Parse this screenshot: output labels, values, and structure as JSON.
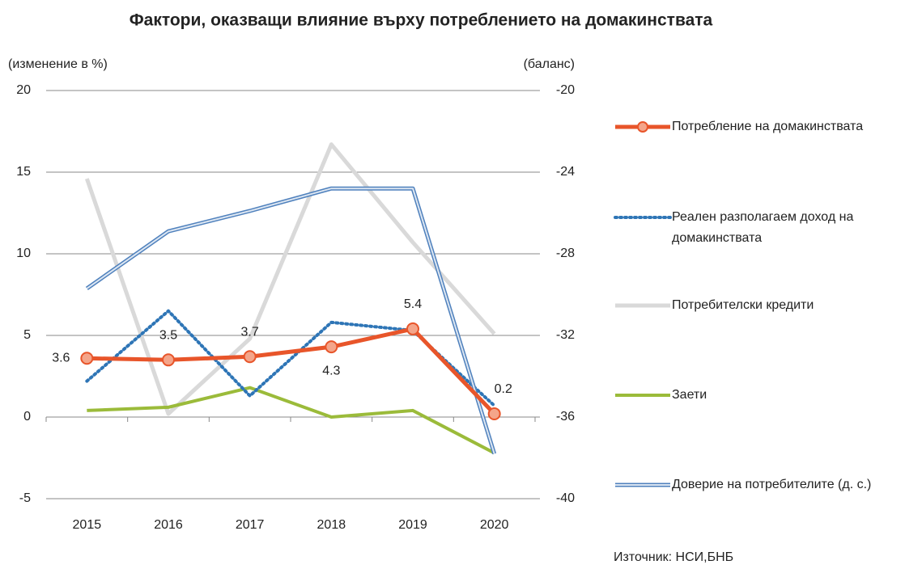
{
  "chart_data": {
    "type": "line",
    "title": "Фактори, оказващи влияние върху потреблението на домакинствата",
    "y_label": "(изменение в %)",
    "y2_label": "(баланс)",
    "source": "Източник: НСИ,БНБ",
    "categories": [
      "2015",
      "2016",
      "2017",
      "2018",
      "2019",
      "2020"
    ],
    "ylim": [
      -5,
      20
    ],
    "yticks": [
      -5,
      0,
      5,
      10,
      15,
      20
    ],
    "y2lim": [
      -40,
      -20
    ],
    "y2ticks": [
      -40,
      -36,
      -32,
      -28,
      -24,
      -20
    ],
    "grid": true,
    "series": [
      {
        "name": "Потребление на домакинствата",
        "color": "#e8552a",
        "values": [
          3.6,
          3.5,
          3.7,
          4.3,
          5.4,
          0.2
        ]
      },
      {
        "name": "Реален разполагаем доход на домакинствата",
        "color": "#2e75b6",
        "values": [
          2.2,
          6.5,
          1.3,
          5.8,
          5.3,
          0.7
        ]
      },
      {
        "name": "Потребителски кредити",
        "color": "#d9d9d9",
        "values": [
          14.6,
          0.2,
          4.8,
          16.7,
          10.7,
          5.1
        ]
      },
      {
        "name": "Заети",
        "color": "#9bbb3a",
        "values": [
          0.4,
          0.6,
          1.8,
          0.0,
          0.4,
          -2.2
        ]
      },
      {
        "name": "Доверие на потребителите (д. с.)",
        "color": "#4f81bd",
        "axis": "y2",
        "values": [
          -29.7,
          -26.9,
          -25.9,
          -24.8,
          -24.8,
          -37.8
        ]
      }
    ]
  }
}
